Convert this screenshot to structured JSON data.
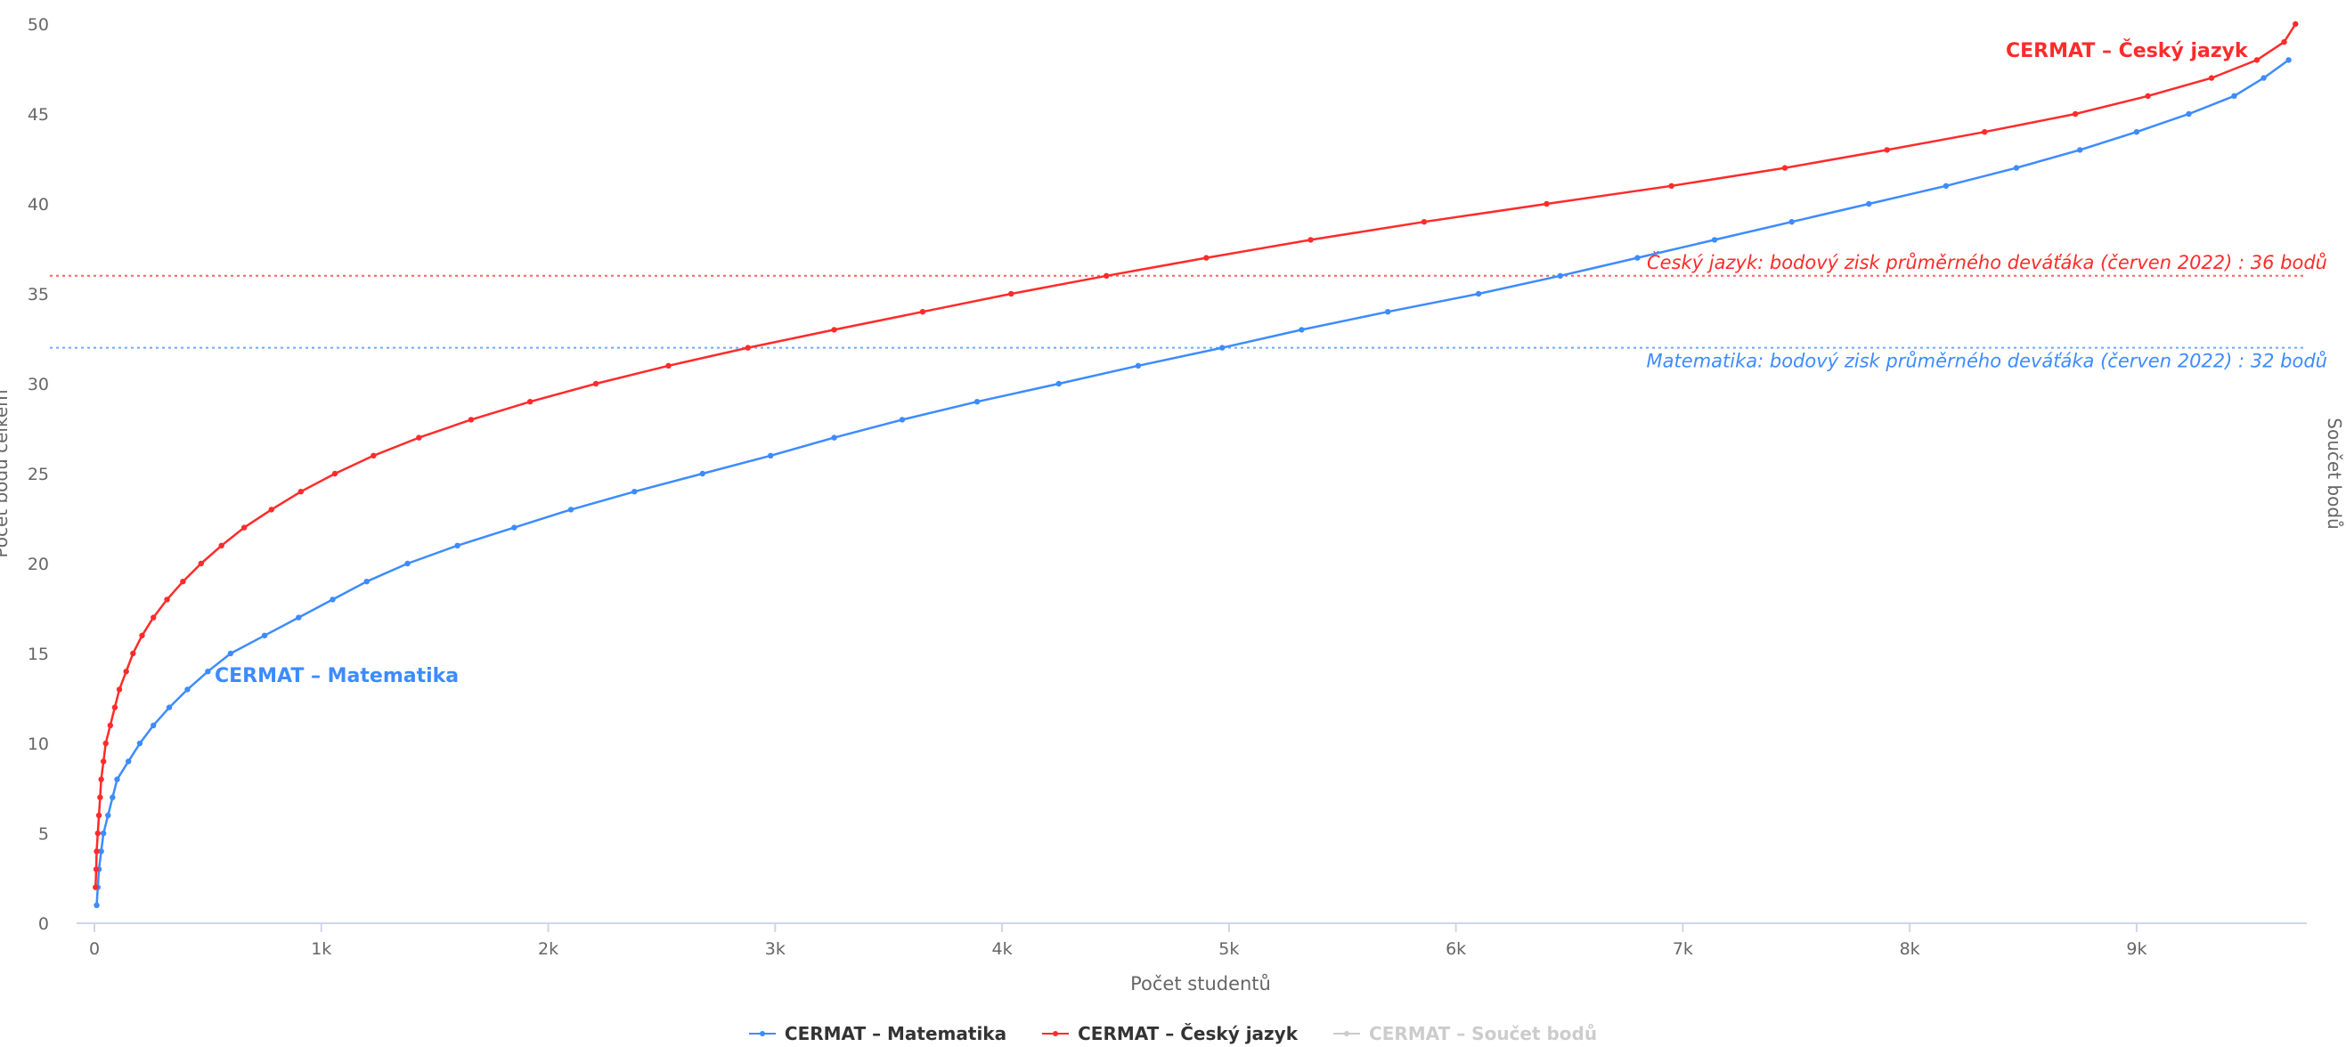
{
  "colors": {
    "matematika": "#3d8bff",
    "cesky": "#ff2b2b",
    "soucet": "#cccccc",
    "axis": "#ccd6eb",
    "text": "#666666"
  },
  "chart_data": {
    "type": "line",
    "xlabel": "Počet studentů",
    "ylabel": "Počet bodů celkem",
    "ylabel_right": "Součet bodů",
    "xlim": [
      0,
      9750
    ],
    "ylim": [
      0,
      50
    ],
    "x_ticks": [
      {
        "v": 0,
        "label": "0"
      },
      {
        "v": 1000,
        "label": "1k"
      },
      {
        "v": 2000,
        "label": "2k"
      },
      {
        "v": 3000,
        "label": "3k"
      },
      {
        "v": 4000,
        "label": "4k"
      },
      {
        "v": 5000,
        "label": "5k"
      },
      {
        "v": 6000,
        "label": "6k"
      },
      {
        "v": 7000,
        "label": "7k"
      },
      {
        "v": 8000,
        "label": "8k"
      },
      {
        "v": 9000,
        "label": "9k"
      }
    ],
    "y_ticks": [
      {
        "v": 0,
        "label": "0"
      },
      {
        "v": 5,
        "label": "5"
      },
      {
        "v": 10,
        "label": "10"
      },
      {
        "v": 15,
        "label": "15"
      },
      {
        "v": 20,
        "label": "20"
      },
      {
        "v": 25,
        "label": "25"
      },
      {
        "v": 30,
        "label": "30"
      },
      {
        "v": 35,
        "label": "35"
      },
      {
        "v": 40,
        "label": "40"
      },
      {
        "v": 45,
        "label": "45"
      },
      {
        "v": 50,
        "label": "50"
      }
    ],
    "grid": false,
    "legend_position": "bottom-center",
    "series": [
      {
        "name": "CERMAT – Matematika",
        "color": "#3d8bff",
        "label": "CERMAT – Matematika",
        "x": [
          10,
          15,
          20,
          30,
          40,
          60,
          80,
          100,
          150,
          200,
          260,
          330,
          410,
          500,
          600,
          750,
          900,
          1050,
          1200,
          1380,
          1600,
          1850,
          2100,
          2380,
          2680,
          2980,
          3260,
          3560,
          3890,
          4250,
          4600,
          4970,
          5320,
          5700,
          6100,
          6460,
          6800,
          7140,
          7480,
          7820,
          8160,
          8470,
          8750,
          9000,
          9230,
          9430,
          9560,
          9670
        ],
        "y": [
          1,
          2,
          3,
          4,
          5,
          6,
          7,
          8,
          9,
          10,
          11,
          12,
          13,
          14,
          15,
          16,
          17,
          18,
          19,
          20,
          21,
          22,
          23,
          24,
          25,
          26,
          27,
          28,
          29,
          30,
          31,
          32,
          33,
          34,
          35,
          36,
          37,
          38,
          39,
          40,
          41,
          42,
          43,
          44,
          45,
          46,
          47,
          48
        ]
      },
      {
        "name": "CERMAT – Český jazyk",
        "color": "#ff2b2b",
        "label": "CERMAT – Český jazyk",
        "x": [
          5,
          8,
          10,
          15,
          20,
          25,
          30,
          40,
          50,
          70,
          90,
          110,
          140,
          170,
          210,
          260,
          320,
          390,
          470,
          560,
          660,
          780,
          910,
          1060,
          1230,
          1430,
          1660,
          1920,
          2210,
          2530,
          2880,
          3260,
          3650,
          4040,
          4460,
          4900,
          5360,
          5860,
          6400,
          6950,
          7450,
          7900,
          8330,
          8730,
          9050,
          9330,
          9530,
          9650,
          9700
        ],
        "y": [
          2,
          3,
          4,
          5,
          6,
          7,
          8,
          9,
          10,
          11,
          12,
          13,
          14,
          15,
          16,
          17,
          18,
          19,
          20,
          21,
          22,
          23,
          24,
          25,
          26,
          27,
          28,
          29,
          30,
          31,
          32,
          33,
          34,
          35,
          36,
          37,
          38,
          39,
          40,
          41,
          42,
          43,
          44,
          45,
          46,
          47,
          48,
          49,
          50
        ]
      },
      {
        "name": "CERMAT – Součet bodů",
        "color": "#cccccc",
        "hidden": true,
        "x": [],
        "y": []
      }
    ],
    "reference_lines": [
      {
        "y": 36,
        "color": "#ff2b2b",
        "label": "Český jazyk: bodový zisk průměrného deváťáka (červen 2022) : 36 bodů"
      },
      {
        "y": 32,
        "color": "#3d8bff",
        "label": "Matematika: bodový zisk průměrného deváťáka (červen 2022) : 32 bodů"
      }
    ]
  },
  "legend": [
    {
      "label": "CERMAT – Matematika",
      "color": "#3d8bff",
      "hidden": false
    },
    {
      "label": "CERMAT – Český jazyk",
      "color": "#ff2b2b",
      "hidden": false
    },
    {
      "label": "CERMAT – Součet bodů",
      "color": "#cccccc",
      "hidden": true
    }
  ]
}
